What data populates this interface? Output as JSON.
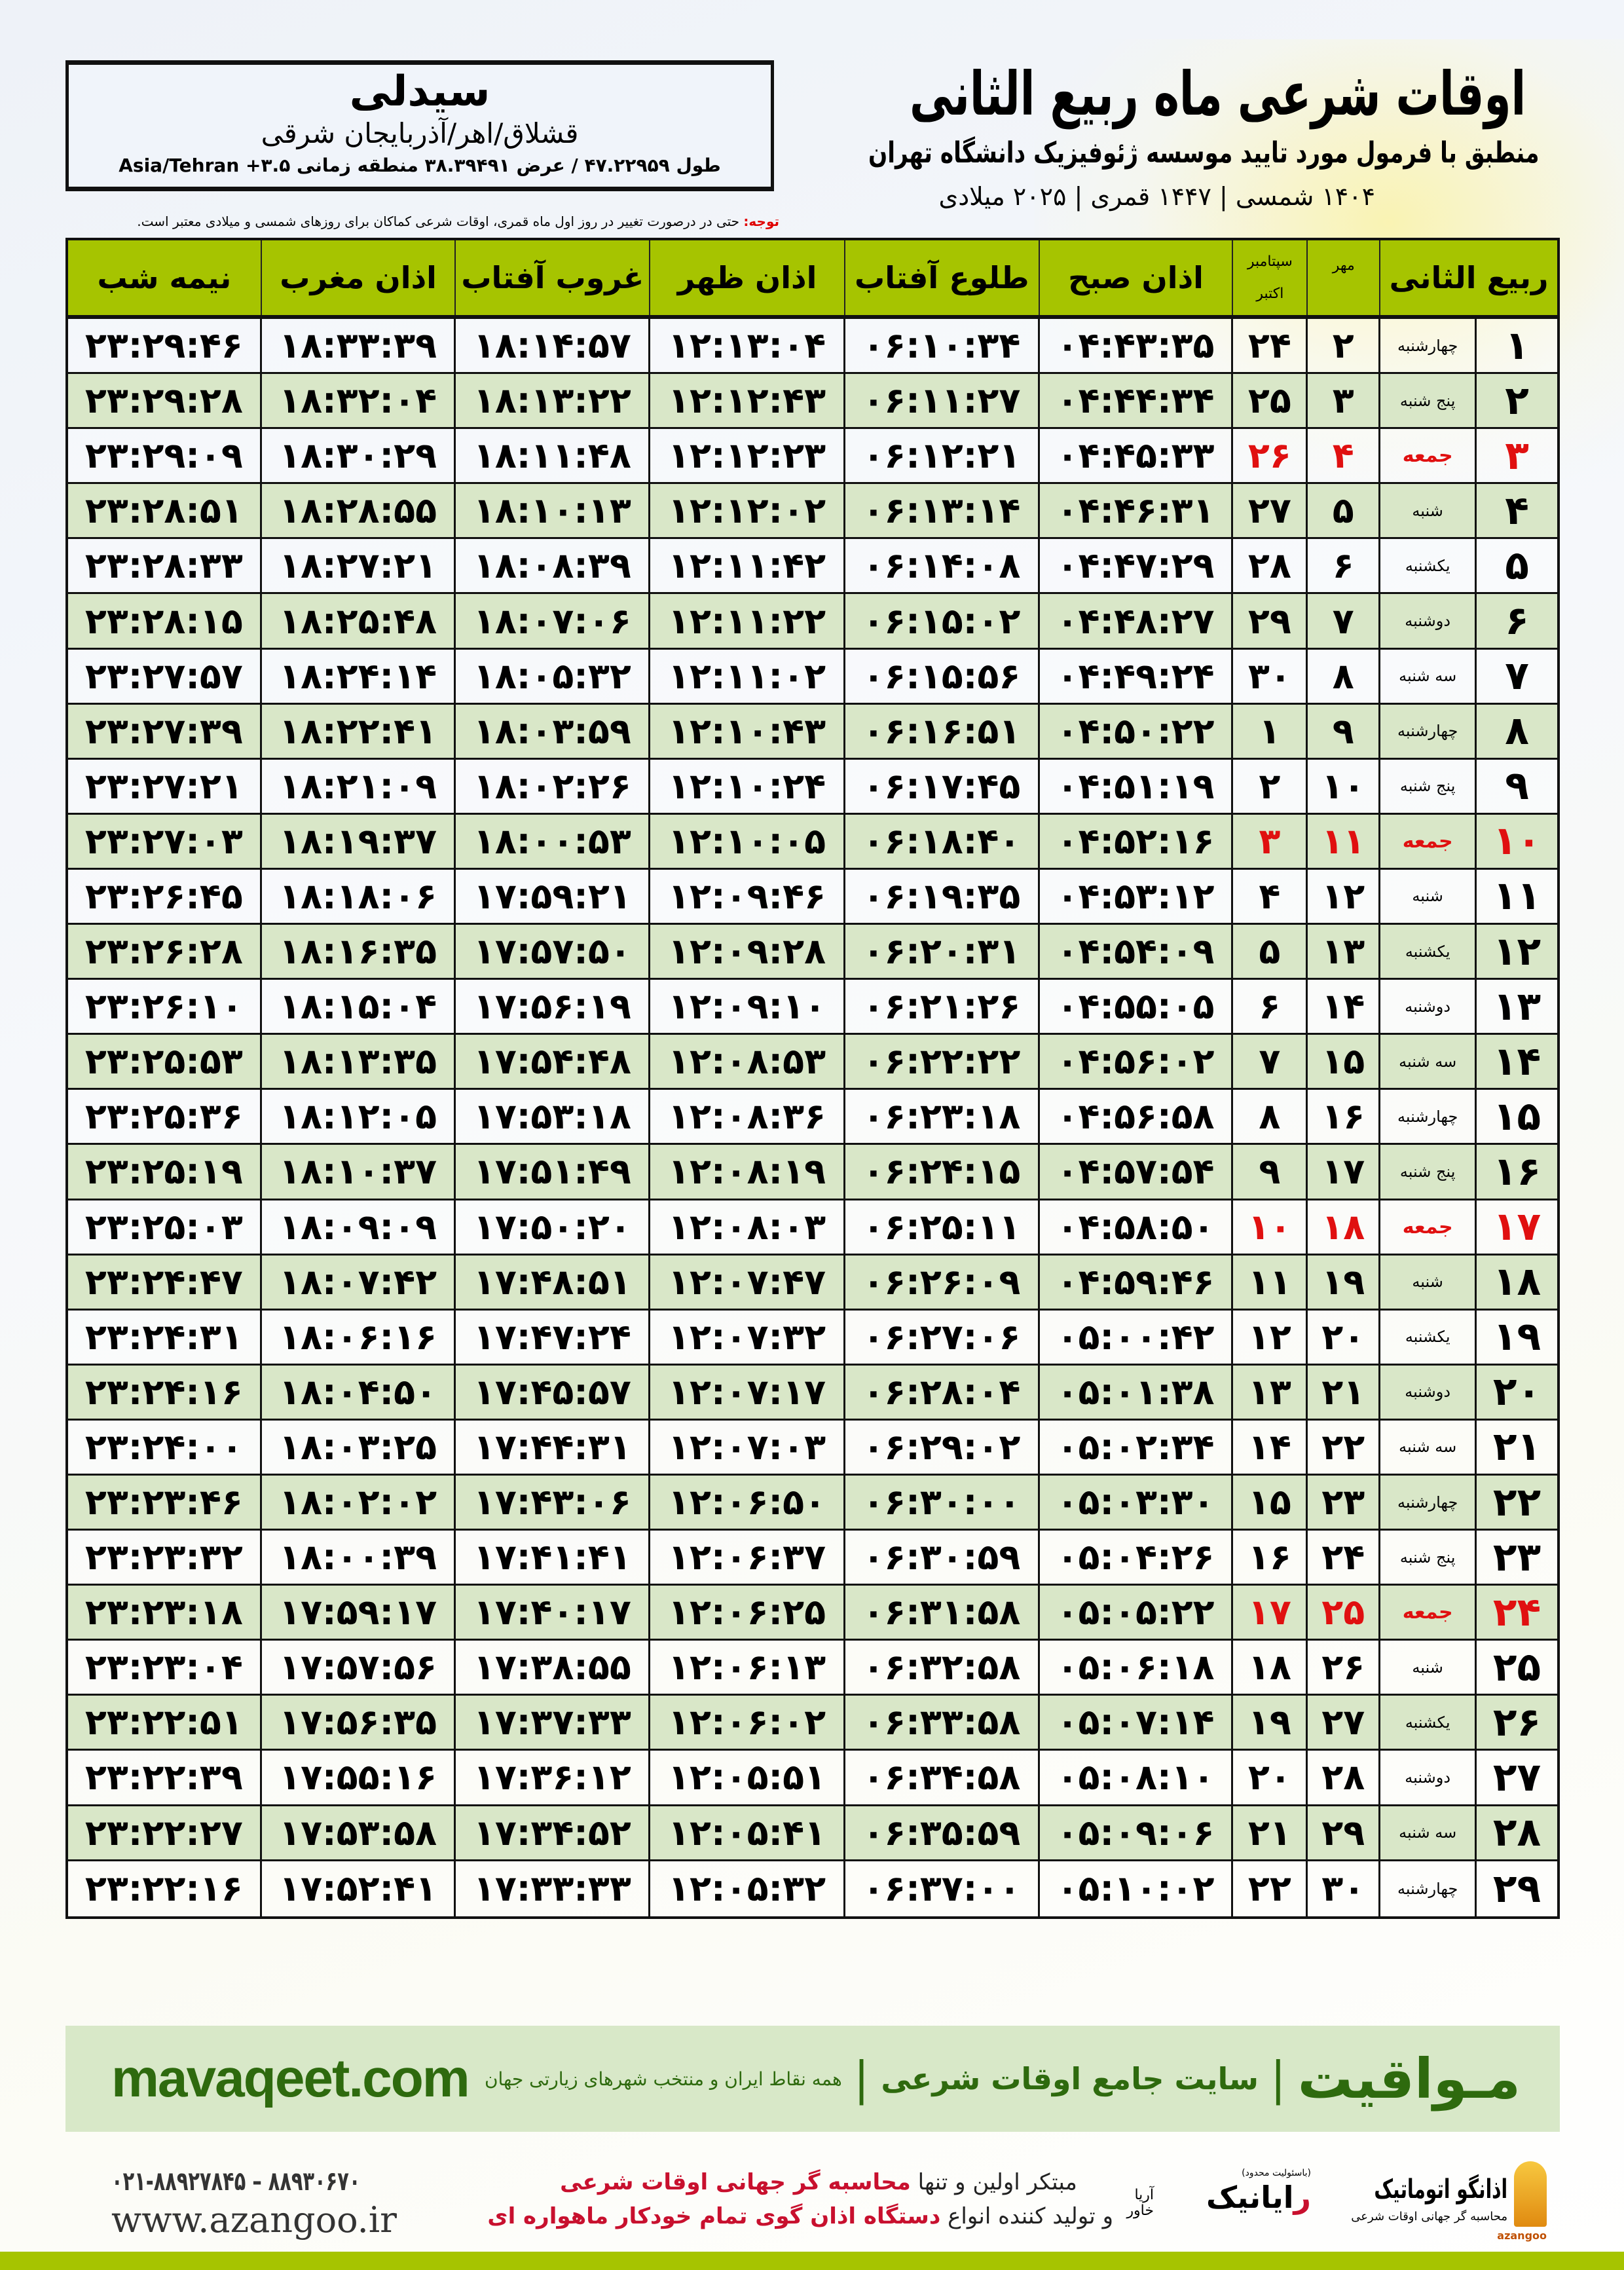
{
  "location": {
    "city": "سیدلی",
    "path": "قشلاق/اهر/آذربایجان شرقی",
    "coords": "طول ۴۷.۲۲۹۵۹ / عرض ۳۸.۳۹۴۹۱ منطقه زمانی ۳.۵+ Asia/Tehran"
  },
  "header": {
    "title": "اوقات شرعی ماه ربیع الثانی",
    "subtitle": "منطبق با فرمول مورد تایید موسسه ژئوفیزیک دانشگاه تهران",
    "dates": "۱۴۰۴ شمسی | ۱۴۴۷ قمری | ۲۰۲۵ میلادی"
  },
  "note": {
    "label": "توجه:",
    "text": " حتی در درصورت تغییر در روز اول ماه قمری، اوقات شرعی کماکان برای روزهای شمسی و میلادی معتبر است."
  },
  "table": {
    "columns": {
      "midnight": "نیمه شب",
      "maghrib": "اذان مغرب",
      "sunset": "غروب آفتاب",
      "dhuhr": "اذان ظهر",
      "sunrise": "طلوع آفتاب",
      "fajr": "اذان صبح",
      "gregorian_top": "سپتامبر",
      "gregorian_bottom": "اکتبر",
      "shamsi": "مهر",
      "month": "ربیع الثانی"
    },
    "holiday_color": "#e01010",
    "rows": [
      [
        "۱",
        "چهارشنبه",
        "۲",
        "۲۴",
        "۰۴:۴۳:۳۵",
        "۰۶:۱۰:۳۴",
        "۱۲:۱۳:۰۴",
        "۱۸:۱۴:۵۷",
        "۱۸:۳۳:۳۹",
        "۲۳:۲۹:۴۶",
        false
      ],
      [
        "۲",
        "پنج شنبه",
        "۳",
        "۲۵",
        "۰۴:۴۴:۳۴",
        "۰۶:۱۱:۲۷",
        "۱۲:۱۲:۴۳",
        "۱۸:۱۳:۲۲",
        "۱۸:۳۲:۰۴",
        "۲۳:۲۹:۲۸",
        false
      ],
      [
        "۳",
        "جمعه",
        "۴",
        "۲۶",
        "۰۴:۴۵:۳۳",
        "۰۶:۱۲:۲۱",
        "۱۲:۱۲:۲۳",
        "۱۸:۱۱:۴۸",
        "۱۸:۳۰:۲۹",
        "۲۳:۲۹:۰۹",
        true
      ],
      [
        "۴",
        "شنبه",
        "۵",
        "۲۷",
        "۰۴:۴۶:۳۱",
        "۰۶:۱۳:۱۴",
        "۱۲:۱۲:۰۲",
        "۱۸:۱۰:۱۳",
        "۱۸:۲۸:۵۵",
        "۲۳:۲۸:۵۱",
        false
      ],
      [
        "۵",
        "یکشنبه",
        "۶",
        "۲۸",
        "۰۴:۴۷:۲۹",
        "۰۶:۱۴:۰۸",
        "۱۲:۱۱:۴۲",
        "۱۸:۰۸:۳۹",
        "۱۸:۲۷:۲۱",
        "۲۳:۲۸:۳۳",
        false
      ],
      [
        "۶",
        "دوشنبه",
        "۷",
        "۲۹",
        "۰۴:۴۸:۲۷",
        "۰۶:۱۵:۰۲",
        "۱۲:۱۱:۲۲",
        "۱۸:۰۷:۰۶",
        "۱۸:۲۵:۴۸",
        "۲۳:۲۸:۱۵",
        false
      ],
      [
        "۷",
        "سه شنبه",
        "۸",
        "۳۰",
        "۰۴:۴۹:۲۴",
        "۰۶:۱۵:۵۶",
        "۱۲:۱۱:۰۲",
        "۱۸:۰۵:۳۲",
        "۱۸:۲۴:۱۴",
        "۲۳:۲۷:۵۷",
        false
      ],
      [
        "۸",
        "چهارشنبه",
        "۹",
        "۱",
        "۰۴:۵۰:۲۲",
        "۰۶:۱۶:۵۱",
        "۱۲:۱۰:۴۳",
        "۱۸:۰۳:۵۹",
        "۱۸:۲۲:۴۱",
        "۲۳:۲۷:۳۹",
        false
      ],
      [
        "۹",
        "پنج شنبه",
        "۱۰",
        "۲",
        "۰۴:۵۱:۱۹",
        "۰۶:۱۷:۴۵",
        "۱۲:۱۰:۲۴",
        "۱۸:۰۲:۲۶",
        "۱۸:۲۱:۰۹",
        "۲۳:۲۷:۲۱",
        false
      ],
      [
        "۱۰",
        "جمعه",
        "۱۱",
        "۳",
        "۰۴:۵۲:۱۶",
        "۰۶:۱۸:۴۰",
        "۱۲:۱۰:۰۵",
        "۱۸:۰۰:۵۳",
        "۱۸:۱۹:۳۷",
        "۲۳:۲۷:۰۳",
        true
      ],
      [
        "۱۱",
        "شنبه",
        "۱۲",
        "۴",
        "۰۴:۵۳:۱۲",
        "۰۶:۱۹:۳۵",
        "۱۲:۰۹:۴۶",
        "۱۷:۵۹:۲۱",
        "۱۸:۱۸:۰۶",
        "۲۳:۲۶:۴۵",
        false
      ],
      [
        "۱۲",
        "یکشنبه",
        "۱۳",
        "۵",
        "۰۴:۵۴:۰۹",
        "۰۶:۲۰:۳۱",
        "۱۲:۰۹:۲۸",
        "۱۷:۵۷:۵۰",
        "۱۸:۱۶:۳۵",
        "۲۳:۲۶:۲۸",
        false
      ],
      [
        "۱۳",
        "دوشنبه",
        "۱۴",
        "۶",
        "۰۴:۵۵:۰۵",
        "۰۶:۲۱:۲۶",
        "۱۲:۰۹:۱۰",
        "۱۷:۵۶:۱۹",
        "۱۸:۱۵:۰۴",
        "۲۳:۲۶:۱۰",
        false
      ],
      [
        "۱۴",
        "سه شنبه",
        "۱۵",
        "۷",
        "۰۴:۵۶:۰۲",
        "۰۶:۲۲:۲۲",
        "۱۲:۰۸:۵۳",
        "۱۷:۵۴:۴۸",
        "۱۸:۱۳:۳۵",
        "۲۳:۲۵:۵۳",
        false
      ],
      [
        "۱۵",
        "چهارشنبه",
        "۱۶",
        "۸",
        "۰۴:۵۶:۵۸",
        "۰۶:۲۳:۱۸",
        "۱۲:۰۸:۳۶",
        "۱۷:۵۳:۱۸",
        "۱۸:۱۲:۰۵",
        "۲۳:۲۵:۳۶",
        false
      ],
      [
        "۱۶",
        "پنج شنبه",
        "۱۷",
        "۹",
        "۰۴:۵۷:۵۴",
        "۰۶:۲۴:۱۵",
        "۱۲:۰۸:۱۹",
        "۱۷:۵۱:۴۹",
        "۱۸:۱۰:۳۷",
        "۲۳:۲۵:۱۹",
        false
      ],
      [
        "۱۷",
        "جمعه",
        "۱۸",
        "۱۰",
        "۰۴:۵۸:۵۰",
        "۰۶:۲۵:۱۱",
        "۱۲:۰۸:۰۳",
        "۱۷:۵۰:۲۰",
        "۱۸:۰۹:۰۹",
        "۲۳:۲۵:۰۳",
        true
      ],
      [
        "۱۸",
        "شنبه",
        "۱۹",
        "۱۱",
        "۰۴:۵۹:۴۶",
        "۰۶:۲۶:۰۹",
        "۱۲:۰۷:۴۷",
        "۱۷:۴۸:۵۱",
        "۱۸:۰۷:۴۲",
        "۲۳:۲۴:۴۷",
        false
      ],
      [
        "۱۹",
        "یکشنبه",
        "۲۰",
        "۱۲",
        "۰۵:۰۰:۴۲",
        "۰۶:۲۷:۰۶",
        "۱۲:۰۷:۳۲",
        "۱۷:۴۷:۲۴",
        "۱۸:۰۶:۱۶",
        "۲۳:۲۴:۳۱",
        false
      ],
      [
        "۲۰",
        "دوشنبه",
        "۲۱",
        "۱۳",
        "۰۵:۰۱:۳۸",
        "۰۶:۲۸:۰۴",
        "۱۲:۰۷:۱۷",
        "۱۷:۴۵:۵۷",
        "۱۸:۰۴:۵۰",
        "۲۳:۲۴:۱۶",
        false
      ],
      [
        "۲۱",
        "سه شنبه",
        "۲۲",
        "۱۴",
        "۰۵:۰۲:۳۴",
        "۰۶:۲۹:۰۲",
        "۱۲:۰۷:۰۳",
        "۱۷:۴۴:۳۱",
        "۱۸:۰۳:۲۵",
        "۲۳:۲۴:۰۰",
        false
      ],
      [
        "۲۲",
        "چهارشنبه",
        "۲۳",
        "۱۵",
        "۰۵:۰۳:۳۰",
        "۰۶:۳۰:۰۰",
        "۱۲:۰۶:۵۰",
        "۱۷:۴۳:۰۶",
        "۱۸:۰۲:۰۲",
        "۲۳:۲۳:۴۶",
        false
      ],
      [
        "۲۳",
        "پنج شنبه",
        "۲۴",
        "۱۶",
        "۰۵:۰۴:۲۶",
        "۰۶:۳۰:۵۹",
        "۱۲:۰۶:۳۷",
        "۱۷:۴۱:۴۱",
        "۱۸:۰۰:۳۹",
        "۲۳:۲۳:۳۲",
        false
      ],
      [
        "۲۴",
        "جمعه",
        "۲۵",
        "۱۷",
        "۰۵:۰۵:۲۲",
        "۰۶:۳۱:۵۸",
        "۱۲:۰۶:۲۵",
        "۱۷:۴۰:۱۷",
        "۱۷:۵۹:۱۷",
        "۲۳:۲۳:۱۸",
        true
      ],
      [
        "۲۵",
        "شنبه",
        "۲۶",
        "۱۸",
        "۰۵:۰۶:۱۸",
        "۰۶:۳۲:۵۸",
        "۱۲:۰۶:۱۳",
        "۱۷:۳۸:۵۵",
        "۱۷:۵۷:۵۶",
        "۲۳:۲۳:۰۴",
        false
      ],
      [
        "۲۶",
        "یکشنبه",
        "۲۷",
        "۱۹",
        "۰۵:۰۷:۱۴",
        "۰۶:۳۳:۵۸",
        "۱۲:۰۶:۰۲",
        "۱۷:۳۷:۳۳",
        "۱۷:۵۶:۳۵",
        "۲۳:۲۲:۵۱",
        false
      ],
      [
        "۲۷",
        "دوشنبه",
        "۲۸",
        "۲۰",
        "۰۵:۰۸:۱۰",
        "۰۶:۳۴:۵۸",
        "۱۲:۰۵:۵۱",
        "۱۷:۳۶:۱۲",
        "۱۷:۵۵:۱۶",
        "۲۳:۲۲:۳۹",
        false
      ],
      [
        "۲۸",
        "سه شنبه",
        "۲۹",
        "۲۱",
        "۰۵:۰۹:۰۶",
        "۰۶:۳۵:۵۹",
        "۱۲:۰۵:۴۱",
        "۱۷:۳۴:۵۲",
        "۱۷:۵۳:۵۸",
        "۲۳:۲۲:۲۷",
        false
      ],
      [
        "۲۹",
        "چهارشنبه",
        "۳۰",
        "۲۲",
        "۰۵:۱۰:۰۲",
        "۰۶:۳۷:۰۰",
        "۱۲:۰۵:۳۲",
        "۱۷:۳۳:۳۳",
        "۱۷:۵۲:۴۱",
        "۲۳:۲۲:۱۶",
        false
      ]
    ]
  },
  "banner": {
    "brand": "مـواقیت",
    "tagline": "سایت جامع اوقات شرعی",
    "sub": "همه نقاط ایران و منتخب شهرهای زیارتی جهان",
    "site": "mavaqeet.com",
    "separator": "|"
  },
  "footer": {
    "phone": "۰۲۱-۸۸۹۲۷۸۴۵ – ۸۸۹۳۰۶۷۰",
    "web": "www.azangoo.ir",
    "line1_a": "مبتکر اولین و تنها ",
    "line1_b": "محاسبه گر جهانی اوقات شرعی",
    "line2_a": "و تولید کننده انواع ",
    "line2_b": "دستگاه اذان گوی تمام خودکار ماهواره ای",
    "logo1_name": "اذانگو اتوماتیک",
    "logo1_sub": "محاسبه گر جهانی اوقات شرعی",
    "logo1_latin": "azangoo",
    "logo2_top": "(باسئولیت محدود)",
    "logo2_name_a": "ر",
    "logo2_name_b": "ایانیک",
    "logo2_side": "آریا خاور"
  },
  "colors": {
    "header_green": "#a6c400",
    "row_alt": "#d9e7c8",
    "banner": "#d8e8c8",
    "brand_text": "#2e6a0e",
    "holiday": "#e01010"
  }
}
